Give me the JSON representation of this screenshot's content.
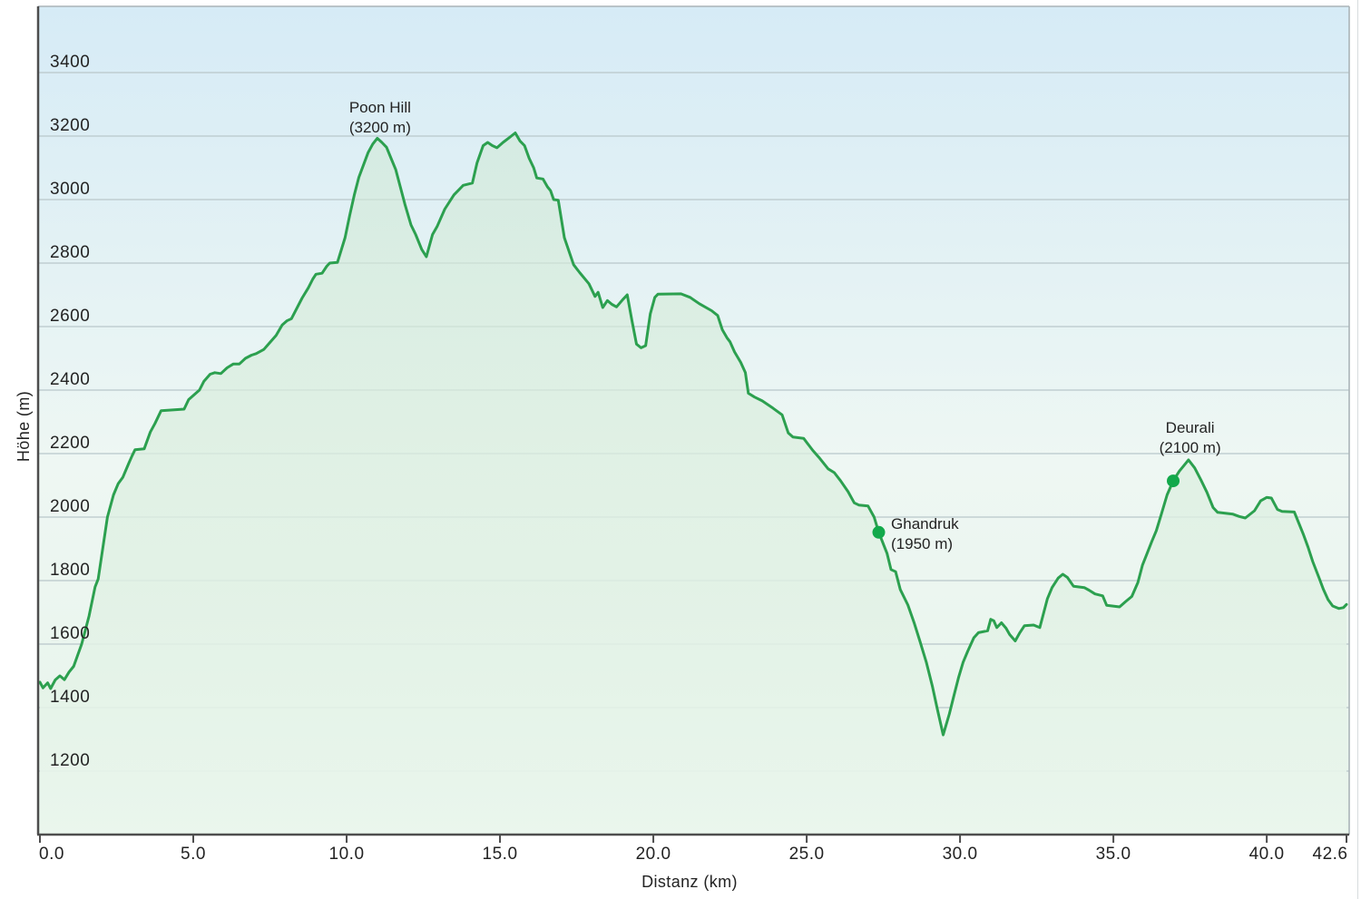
{
  "chart_data": {
    "type": "area",
    "title": "",
    "xlabel": "Distanz  (km)",
    "ylabel": "Höhe (m)",
    "xlim": [
      0,
      42.6
    ],
    "ylim": [
      1000,
      3608
    ],
    "grid": "horizontal",
    "legend": "none",
    "x_ticks": {
      "values": [
        0,
        5,
        10,
        15,
        20,
        25,
        30,
        35,
        40,
        42.6
      ],
      "labels": [
        "0.0",
        "5.0",
        "10.0",
        "15.0",
        "20.0",
        "25.0",
        "30.0",
        "35.0",
        "40.0",
        "42.6"
      ]
    },
    "y_ticks": {
      "values": [
        1200,
        1400,
        1600,
        1800,
        2000,
        2200,
        2400,
        2600,
        2800,
        3000,
        3200,
        3400
      ],
      "labels": [
        "1200",
        "1400",
        "1600",
        "1800",
        "2000",
        "2200",
        "2400",
        "2600",
        "2800",
        "3000",
        "3200",
        "3400"
      ]
    },
    "series": [
      {
        "name": "elevation-profile",
        "points": [
          [
            0,
            1480
          ],
          [
            0.1,
            1462
          ],
          [
            0.25,
            1478
          ],
          [
            0.35,
            1460
          ],
          [
            0.5,
            1487
          ],
          [
            0.65,
            1500
          ],
          [
            0.8,
            1488
          ],
          [
            0.95,
            1512
          ],
          [
            1.1,
            1530
          ],
          [
            1.36,
            1600
          ],
          [
            1.6,
            1688
          ],
          [
            1.8,
            1780
          ],
          [
            1.9,
            1805
          ],
          [
            2.2,
            2000
          ],
          [
            2.4,
            2070
          ],
          [
            2.55,
            2105
          ],
          [
            2.7,
            2125
          ],
          [
            2.9,
            2170
          ],
          [
            3.0,
            2192
          ],
          [
            3.1,
            2212
          ],
          [
            3.4,
            2215
          ],
          [
            3.6,
            2268
          ],
          [
            3.75,
            2295
          ],
          [
            3.95,
            2335
          ],
          [
            4.7,
            2340
          ],
          [
            4.85,
            2370
          ],
          [
            5.2,
            2400
          ],
          [
            5.35,
            2428
          ],
          [
            5.55,
            2450
          ],
          [
            5.7,
            2455
          ],
          [
            5.9,
            2452
          ],
          [
            6.1,
            2470
          ],
          [
            6.3,
            2482
          ],
          [
            6.5,
            2482
          ],
          [
            6.7,
            2500
          ],
          [
            6.9,
            2510
          ],
          [
            7.05,
            2515
          ],
          [
            7.3,
            2528
          ],
          [
            7.5,
            2550
          ],
          [
            7.7,
            2572
          ],
          [
            7.9,
            2605
          ],
          [
            8.05,
            2618
          ],
          [
            8.2,
            2625
          ],
          [
            8.55,
            2690
          ],
          [
            8.75,
            2722
          ],
          [
            8.9,
            2750
          ],
          [
            9.0,
            2765
          ],
          [
            9.2,
            2768
          ],
          [
            9.35,
            2790
          ],
          [
            9.45,
            2800
          ],
          [
            9.7,
            2802
          ],
          [
            9.95,
            2880
          ],
          [
            10.1,
            2950
          ],
          [
            10.25,
            3015
          ],
          [
            10.4,
            3070
          ],
          [
            10.7,
            3148
          ],
          [
            10.85,
            3175
          ],
          [
            11.0,
            3193
          ],
          [
            11.15,
            3180
          ],
          [
            11.3,
            3165
          ],
          [
            11.45,
            3130
          ],
          [
            11.6,
            3095
          ],
          [
            11.75,
            3040
          ],
          [
            11.9,
            2985
          ],
          [
            12.1,
            2920
          ],
          [
            12.25,
            2890
          ],
          [
            12.45,
            2843
          ],
          [
            12.6,
            2820
          ],
          [
            12.8,
            2890
          ],
          [
            12.95,
            2915
          ],
          [
            13.2,
            2970
          ],
          [
            13.5,
            3015
          ],
          [
            13.8,
            3045
          ],
          [
            14.1,
            3052
          ],
          [
            14.25,
            3115
          ],
          [
            14.45,
            3170
          ],
          [
            14.6,
            3180
          ],
          [
            14.75,
            3170
          ],
          [
            14.9,
            3163
          ],
          [
            15.1,
            3180
          ],
          [
            15.3,
            3195
          ],
          [
            15.5,
            3210
          ],
          [
            15.65,
            3185
          ],
          [
            15.8,
            3170
          ],
          [
            15.95,
            3130
          ],
          [
            16.1,
            3100
          ],
          [
            16.2,
            3068
          ],
          [
            16.4,
            3065
          ],
          [
            16.55,
            3040
          ],
          [
            16.65,
            3028
          ],
          [
            16.75,
            3000
          ],
          [
            16.9,
            2998
          ],
          [
            17.0,
            2940
          ],
          [
            17.1,
            2880
          ],
          [
            17.4,
            2795
          ],
          [
            17.6,
            2770
          ],
          [
            17.9,
            2735
          ],
          [
            18.1,
            2695
          ],
          [
            18.2,
            2708
          ],
          [
            18.35,
            2660
          ],
          [
            18.5,
            2682
          ],
          [
            18.65,
            2670
          ],
          [
            18.8,
            2662
          ],
          [
            19.0,
            2685
          ],
          [
            19.15,
            2700
          ],
          [
            19.3,
            2620
          ],
          [
            19.45,
            2545
          ],
          [
            19.6,
            2533
          ],
          [
            19.75,
            2540
          ],
          [
            19.9,
            2640
          ],
          [
            20.05,
            2692
          ],
          [
            20.15,
            2702
          ],
          [
            20.9,
            2703
          ],
          [
            21.2,
            2692
          ],
          [
            21.5,
            2672
          ],
          [
            21.9,
            2650
          ],
          [
            22.1,
            2635
          ],
          [
            22.25,
            2590
          ],
          [
            22.4,
            2565
          ],
          [
            22.5,
            2552
          ],
          [
            22.65,
            2520
          ],
          [
            22.85,
            2487
          ],
          [
            23.0,
            2455
          ],
          [
            23.1,
            2390
          ],
          [
            23.3,
            2378
          ],
          [
            23.55,
            2366
          ],
          [
            23.9,
            2343
          ],
          [
            24.2,
            2322
          ],
          [
            24.4,
            2265
          ],
          [
            24.55,
            2252
          ],
          [
            24.9,
            2248
          ],
          [
            25.2,
            2210
          ],
          [
            25.4,
            2188
          ],
          [
            25.7,
            2152
          ],
          [
            25.9,
            2140
          ],
          [
            26.1,
            2115
          ],
          [
            26.35,
            2080
          ],
          [
            26.55,
            2045
          ],
          [
            26.7,
            2038
          ],
          [
            27.0,
            2035
          ],
          [
            27.2,
            2000
          ],
          [
            27.35,
            1952
          ],
          [
            27.5,
            1915
          ],
          [
            27.62,
            1886
          ],
          [
            27.75,
            1835
          ],
          [
            27.9,
            1828
          ],
          [
            28.05,
            1772
          ],
          [
            28.3,
            1723
          ],
          [
            28.5,
            1668
          ],
          [
            28.7,
            1607
          ],
          [
            28.9,
            1543
          ],
          [
            29.1,
            1466
          ],
          [
            29.25,
            1400
          ],
          [
            29.45,
            1314
          ],
          [
            29.65,
            1380
          ],
          [
            29.8,
            1437
          ],
          [
            29.95,
            1494
          ],
          [
            30.1,
            1543
          ],
          [
            30.25,
            1577
          ],
          [
            30.45,
            1620
          ],
          [
            30.6,
            1636
          ],
          [
            30.9,
            1642
          ],
          [
            31.0,
            1678
          ],
          [
            31.1,
            1673
          ],
          [
            31.2,
            1652
          ],
          [
            31.35,
            1667
          ],
          [
            31.5,
            1650
          ],
          [
            31.62,
            1630
          ],
          [
            31.8,
            1610
          ],
          [
            31.95,
            1636
          ],
          [
            32.1,
            1658
          ],
          [
            32.4,
            1660
          ],
          [
            32.6,
            1652
          ],
          [
            32.85,
            1743
          ],
          [
            33.0,
            1778
          ],
          [
            33.2,
            1808
          ],
          [
            33.35,
            1820
          ],
          [
            33.5,
            1810
          ],
          [
            33.7,
            1782
          ],
          [
            34.05,
            1778
          ],
          [
            34.2,
            1770
          ],
          [
            34.4,
            1758
          ],
          [
            34.65,
            1752
          ],
          [
            34.78,
            1722
          ],
          [
            35.2,
            1717
          ],
          [
            35.4,
            1734
          ],
          [
            35.6,
            1750
          ],
          [
            35.8,
            1794
          ],
          [
            35.95,
            1849
          ],
          [
            36.1,
            1886
          ],
          [
            36.25,
            1923
          ],
          [
            36.4,
            1957
          ],
          [
            36.55,
            2005
          ],
          [
            36.75,
            2070
          ],
          [
            36.95,
            2114
          ],
          [
            37.15,
            2145
          ],
          [
            37.45,
            2180
          ],
          [
            37.65,
            2155
          ],
          [
            37.85,
            2118
          ],
          [
            38.05,
            2078
          ],
          [
            38.25,
            2030
          ],
          [
            38.4,
            2015
          ],
          [
            38.9,
            2009
          ],
          [
            39.1,
            2002
          ],
          [
            39.3,
            1997
          ],
          [
            39.6,
            2020
          ],
          [
            39.8,
            2051
          ],
          [
            40.0,
            2062
          ],
          [
            40.15,
            2060
          ],
          [
            40.35,
            2024
          ],
          [
            40.5,
            2018
          ],
          [
            40.9,
            2016
          ],
          [
            41.05,
            1980
          ],
          [
            41.2,
            1944
          ],
          [
            41.35,
            1905
          ],
          [
            41.5,
            1860
          ],
          [
            41.7,
            1810
          ],
          [
            41.85,
            1772
          ],
          [
            42.0,
            1740
          ],
          [
            42.15,
            1720
          ],
          [
            42.35,
            1712
          ],
          [
            42.5,
            1715
          ],
          [
            42.6,
            1725
          ]
        ]
      }
    ],
    "annotations": [
      {
        "label": "Poon Hill",
        "elevation_label": "(3200 m)",
        "km": 11.0,
        "m": 3193,
        "dot": false,
        "label_km": 11.09,
        "label_m": 3274,
        "align": "middle"
      },
      {
        "label": "Ghandruk",
        "elevation_label": "(1950 m)",
        "km": 27.35,
        "m": 1952,
        "dot": true,
        "label_km": 27.75,
        "label_m": 1963,
        "align": "start"
      },
      {
        "label": "Deurali",
        "elevation_label": "(2100 m)",
        "km": 36.95,
        "m": 2114,
        "dot": true,
        "label_km": 37.5,
        "label_m": 2266,
        "align": "middle"
      }
    ]
  },
  "colors": {
    "line": "#2ca04f",
    "marker": "#12a94b",
    "grid": "#b9c7ca",
    "axis": "#4d4d4d",
    "border": "#aab4b8",
    "bg_top": "#d6ebf6",
    "bg_mid": "#eef7f3",
    "bg_bottom": "#e7f4ea",
    "fill_top": "#cfe8d4",
    "fill_bottom": "#eaf6ed",
    "text": "#232323"
  }
}
